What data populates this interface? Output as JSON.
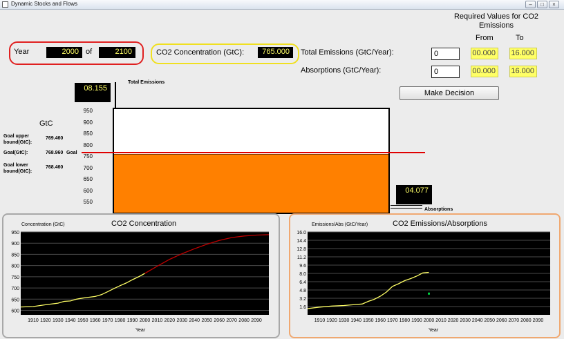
{
  "window": {
    "title": "Dynamic Stocks and Flows",
    "buttons": [
      "minimize",
      "maximize",
      "close"
    ]
  },
  "year_box": {
    "label": "Year",
    "current": "2000",
    "of_label": "of",
    "end": "2100",
    "border_color": "#e02020"
  },
  "concentration_box": {
    "label": "CO2 Concentration (GtC):",
    "value": "765.000",
    "border_color": "#f0e020"
  },
  "required": {
    "heading": "Required Values for CO2 Emissions",
    "from_header": "From",
    "to_header": "To",
    "rows": [
      {
        "label": "Total Emissions (GtC/Year):",
        "input": "0",
        "from": "00.000",
        "to": "16.000"
      },
      {
        "label": "Absorptions (GtC/Year):",
        "input": "0",
        "from": "00.000",
        "to": "16.000"
      }
    ]
  },
  "make_decision_label": "Make Decision",
  "tank": {
    "unit_label": "GtC",
    "total_emissions_label": "Total Emissions",
    "total_emissions_value": "08.155",
    "absorptions_label": "Absorptions",
    "absorptions_value": "04.077",
    "scale_min": 500,
    "scale_max": 965,
    "level": 765,
    "goal": 768.96,
    "fill_color": "#ff8000",
    "ticks": [
      "950",
      "900",
      "850",
      "800",
      "750",
      "700",
      "650",
      "600",
      "550"
    ],
    "goal_upper_label": "Goal upper bound(GtC):",
    "goal_upper_value": "769.460",
    "goal_label": "Goal(GtC):",
    "goal_value": "768.960",
    "goal_word": "Goal",
    "goal_lower_label": "Goal lower bound(GtC):",
    "goal_lower_value": "768.460"
  },
  "chart_data": [
    {
      "type": "line",
      "title": "CO2 Concentration",
      "ylabel": "Concentration (GtC)",
      "xlabel": "Year",
      "xlim": [
        1900,
        2100
      ],
      "ylim": [
        580,
        950
      ],
      "yticks": [
        600,
        650,
        700,
        750,
        800,
        850,
        900,
        950
      ],
      "xticks": [
        1910,
        1920,
        1930,
        1940,
        1950,
        1960,
        1970,
        1980,
        1990,
        2000,
        2010,
        2020,
        2030,
        2040,
        2050,
        2060,
        2070,
        2080,
        2090
      ],
      "grid": true,
      "series": [
        {
          "color": "#ffff66",
          "x": [
            1900,
            1910,
            1920,
            1930,
            1935,
            1940,
            1945,
            1950,
            1960,
            1965,
            1970,
            1975,
            1980,
            1985,
            1990,
            1995,
            2000
          ],
          "y": [
            615,
            617,
            625,
            632,
            640,
            642,
            650,
            655,
            662,
            670,
            683,
            697,
            710,
            722,
            737,
            750,
            765
          ]
        },
        {
          "color": "#c00000",
          "x": [
            2000,
            2010,
            2020,
            2030,
            2040,
            2050,
            2060,
            2070,
            2080,
            2090,
            2100
          ],
          "y": [
            765,
            797,
            828,
            853,
            875,
            895,
            912,
            925,
            932,
            936,
            938
          ]
        }
      ]
    },
    {
      "type": "line",
      "title": "CO2 Emissions/Absorptions",
      "ylabel": "Emissions/Abs (GtC/Year)",
      "xlabel": "Year",
      "xlim": [
        1900,
        2100
      ],
      "ylim": [
        0,
        16
      ],
      "yticks": [
        "1.6",
        "3.2",
        "4.8",
        "6.4",
        "8.0",
        "9.6",
        "11.2",
        "12.8",
        "14.4",
        "16.0"
      ],
      "xticks": [
        1910,
        1920,
        1930,
        1940,
        1950,
        1960,
        1970,
        1980,
        1990,
        2000,
        2010,
        2020,
        2030,
        2040,
        2050,
        2060,
        2070,
        2080,
        2090
      ],
      "grid": true,
      "series": [
        {
          "color": "#ffff66",
          "x": [
            1900,
            1910,
            1920,
            1930,
            1940,
            1945,
            1950,
            1955,
            1960,
            1965,
            1970,
            1975,
            1980,
            1985,
            1990,
            1995,
            2000
          ],
          "y": [
            1.2,
            1.5,
            1.7,
            1.8,
            2.0,
            2.1,
            2.6,
            3.0,
            3.6,
            4.4,
            5.5,
            6.0,
            6.6,
            7.0,
            7.5,
            8.1,
            8.2
          ]
        }
      ],
      "points": [
        {
          "color": "#00d040",
          "x": 2000,
          "y": 4.1
        }
      ]
    }
  ]
}
